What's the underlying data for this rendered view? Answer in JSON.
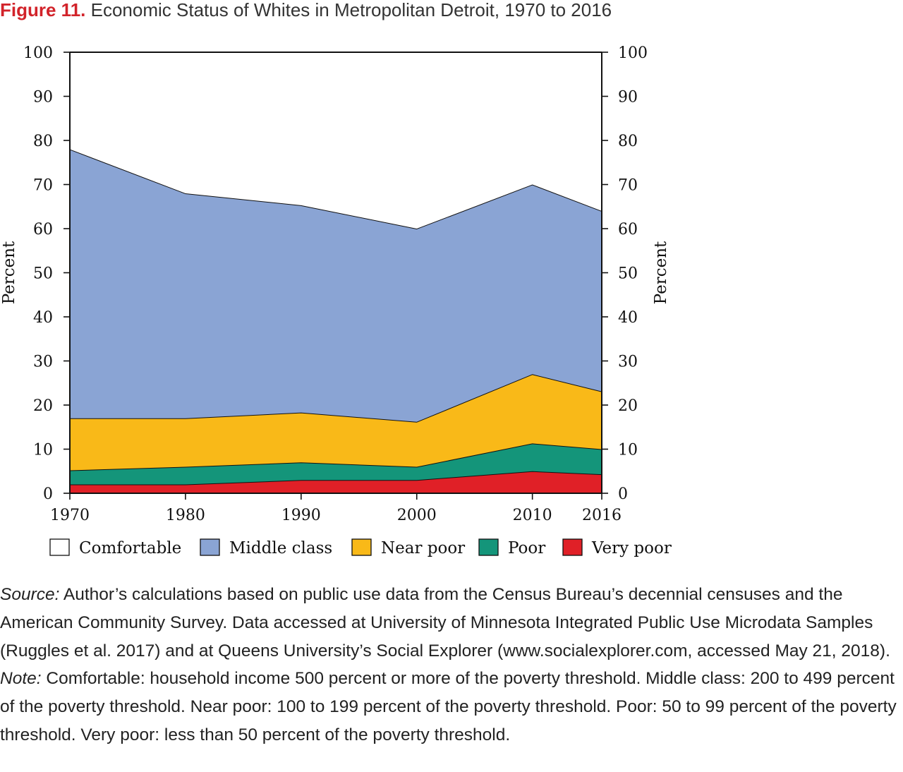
{
  "figure": {
    "number_label": "Figure 11.",
    "title": "Economic Status of Whites in Metropolitan Detroit, 1970 to 2016"
  },
  "chart_data": {
    "type": "area",
    "stacked": true,
    "title": "Economic Status of Whites in Metropolitan Detroit, 1970 to 2016",
    "x": [
      1970,
      1980,
      1990,
      2000,
      2010,
      2016
    ],
    "x_tick_labels": [
      "1970",
      "1980",
      "1990",
      "2000",
      "2010",
      "2016"
    ],
    "ylabel_left": "Percent",
    "ylabel_right": "Percent",
    "ylim": [
      0,
      100
    ],
    "y_ticks": [
      0,
      10,
      20,
      30,
      40,
      50,
      60,
      70,
      80,
      90,
      100
    ],
    "grid": false,
    "legend_position": "bottom",
    "series": [
      {
        "name": "Very poor",
        "color": "#e02027",
        "values": [
          2,
          2,
          3,
          3,
          5,
          4.3
        ]
      },
      {
        "name": "Poor",
        "color": "#14957a",
        "values": [
          3.2,
          4,
          4,
          3,
          6.3,
          5.7
        ]
      },
      {
        "name": "Near poor",
        "color": "#f9b918",
        "values": [
          11.8,
          11,
          11.3,
          10.2,
          15.7,
          13.1
        ]
      },
      {
        "name": "Middle class",
        "color": "#8aa4d4",
        "values": [
          61,
          51,
          47,
          43.8,
          43,
          40.9
        ]
      },
      {
        "name": "Comfortable",
        "color": "#ffffff",
        "values": [
          22,
          32,
          34.7,
          40,
          30,
          36
        ]
      }
    ]
  },
  "legend": [
    {
      "label": "Comfortable",
      "color": "#ffffff"
    },
    {
      "label": "Middle class",
      "color": "#8aa4d4"
    },
    {
      "label": "Near poor",
      "color": "#f9b918"
    },
    {
      "label": "Poor",
      "color": "#14957a"
    },
    {
      "label": "Very poor",
      "color": "#e02027"
    }
  ],
  "notes": {
    "source_label": "Source:",
    "source_text": " Author’s calculations based on public use data from the Census Bureau’s decennial censuses and the American Community Survey. Data accessed at University of Minnesota Integrated Public Use Microdata Samples (Ruggles et al. 2017) and at Queens University’s Social Explorer (www.socialexplorer.com, accessed May 21, 2018).",
    "note_label": "Note:",
    "note_text": " Comfortable: household income 500 percent or more of the poverty threshold. Middle class: 200 to 499 percent of the poverty threshold. Near poor: 100 to 199 percent of the poverty threshold. Poor: 50 to 99 percent of the poverty threshold. Very poor: less than 50 percent of the poverty threshold."
  }
}
